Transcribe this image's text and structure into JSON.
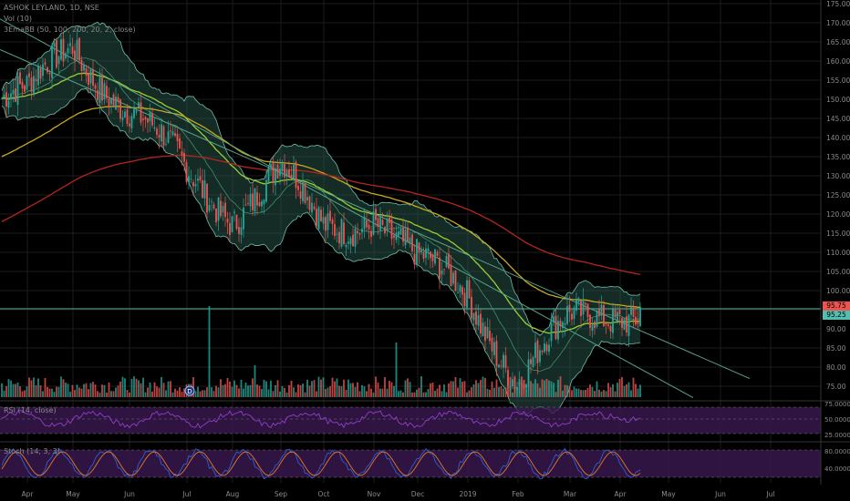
{
  "header": {
    "symbol_line": "ASHOK LEYLAND, 1D, NSE",
    "vol_label": "Vol (10)",
    "ema_label": "3EmaBB (50, 100, 200, 20, 2, close)",
    "rsi_label": "RSI (14, close)",
    "stoch_label": "Stoch (14, 3, 3)"
  },
  "badges": {
    "current_price": "95.75",
    "prev_price": "95.25",
    "event_marker": "D"
  },
  "colors": {
    "background": "#000000",
    "grid": "#1c1c1c",
    "candle_up": "#26a69a",
    "candle_down": "#ef5350",
    "ema50": "#9acd32",
    "ema100": "#c8a81e",
    "ema200": "#b3261e",
    "bb_fill": "#2f5f55",
    "bb_line": "#6fbfa8",
    "trendline": "#55a58c",
    "horizontal": "#4a9e86",
    "rsi_band": "#3b1850",
    "rsi_line": "#8f3fc9",
    "stoch_k": "#2f5fd0",
    "stoch_d": "#e07b2a"
  },
  "chart_data": {
    "type": "candlestick",
    "title": "ASHOK LEYLAND, 1D, NSE",
    "x_ticks": [
      "Apr",
      "May",
      "Jun",
      "Jul",
      "Aug",
      "Sep",
      "Oct",
      "Nov",
      "Dec",
      "2019",
      "Feb",
      "Mar",
      "Apr",
      "May",
      "Jun",
      "Jul"
    ],
    "price_ticks": [
      "175.00",
      "170.00",
      "165.00",
      "160.00",
      "155.00",
      "150.00",
      "145.00",
      "140.00",
      "135.00",
      "130.00",
      "125.00",
      "120.00",
      "115.00",
      "110.00",
      "105.00",
      "100.00",
      "95.00",
      "90.00",
      "85.00",
      "80.00",
      "75.00"
    ],
    "ylim": [
      72,
      177
    ],
    "rsi_ticks": [
      "75.0000",
      "50.0000",
      "25.0000"
    ],
    "stoch_ticks": [
      "80.0000",
      "40.0000"
    ],
    "monthly_path": [
      {
        "month": "Apr",
        "price": 150
      },
      {
        "month": "May",
        "price": 165
      },
      {
        "month": "Jun",
        "price": 147
      },
      {
        "month": "Jul",
        "price": 130
      },
      {
        "month": "Aug",
        "price": 121
      },
      {
        "month": "Sep",
        "price": 131
      },
      {
        "month": "Oct",
        "price": 116
      },
      {
        "month": "Nov",
        "price": 121
      },
      {
        "month": "Dec",
        "price": 106
      },
      {
        "month": "2019",
        "price": 100
      },
      {
        "month": "Feb",
        "price": 77
      },
      {
        "month": "Mar",
        "price": 91
      },
      {
        "month": "Apr",
        "price": 96
      }
    ],
    "last_close": 95.75,
    "volume_spikes": [
      {
        "month": "Jul",
        "relative": 1.0
      },
      {
        "month": "Nov",
        "relative": 0.6
      },
      {
        "month": "Aug",
        "relative": 0.35
      }
    ]
  }
}
